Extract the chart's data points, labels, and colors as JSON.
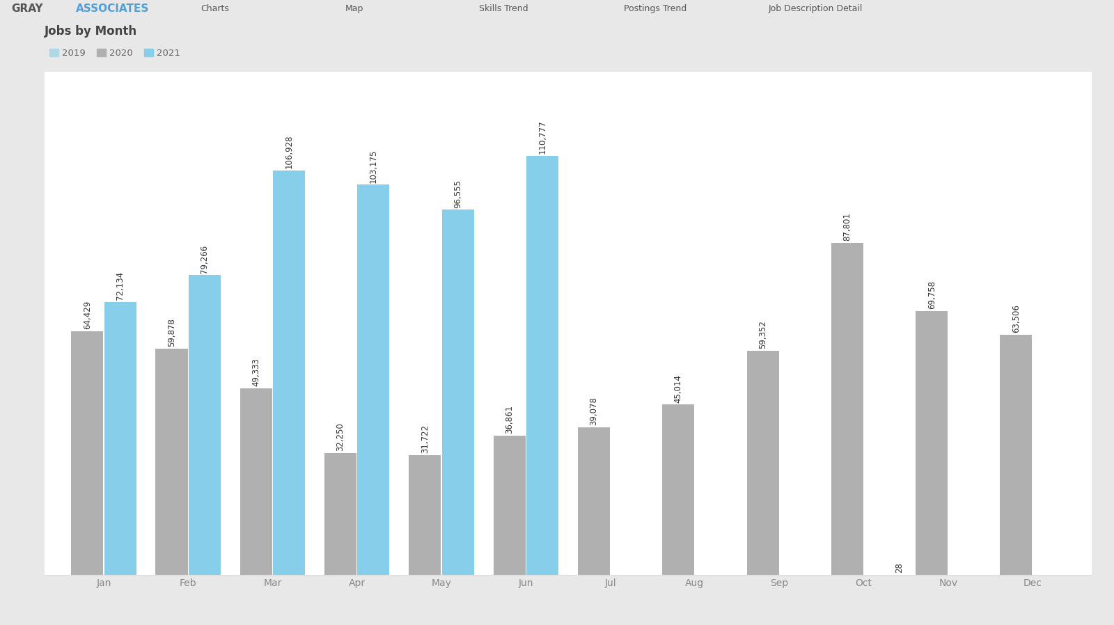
{
  "title": "Jobs by Month",
  "months": [
    "Jan",
    "Feb",
    "Mar",
    "Apr",
    "May",
    "Jun",
    "Jul",
    "Aug",
    "Sep",
    "Oct",
    "Nov",
    "Dec"
  ],
  "values_2020": [
    64429,
    59878,
    49333,
    32250,
    31722,
    36861,
    39078,
    45014,
    59352,
    87801,
    69758,
    63506
  ],
  "values_2021": [
    72134,
    79266,
    106928,
    103175,
    96555,
    110777,
    null,
    null,
    null,
    null,
    null,
    null
  ],
  "values_2019": [
    null,
    null,
    null,
    null,
    null,
    null,
    null,
    null,
    null,
    null,
    28,
    null
  ],
  "color_2019": "#ADD8E6",
  "color_2020": "#b0b0b0",
  "color_2021": "#87CEEB",
  "outer_bg": "#e8e8e8",
  "header_bg": "#f0f0f0",
  "plot_bg": "#ffffff",
  "legend_2019": "2019",
  "legend_2020": "2020",
  "legend_2021": "2021",
  "bar_width": 0.38,
  "figsize": [
    16.0,
    8.98
  ],
  "dpi": 100,
  "label_fontsize": 8.5,
  "axis_fontsize": 10,
  "title_fontsize": 12
}
